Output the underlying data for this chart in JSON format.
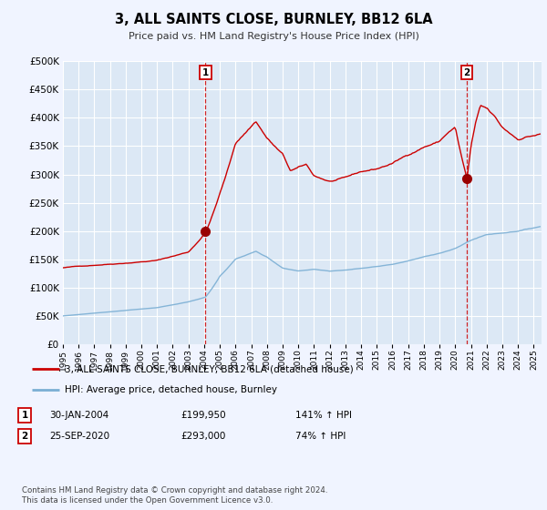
{
  "title": "3, ALL SAINTS CLOSE, BURNLEY, BB12 6LA",
  "subtitle": "Price paid vs. HM Land Registry's House Price Index (HPI)",
  "legend_line1": "3, ALL SAINTS CLOSE, BURNLEY, BB12 6LA (detached house)",
  "legend_line2": "HPI: Average price, detached house, Burnley",
  "table_rows": [
    {
      "num": "1",
      "date": "30-JAN-2004",
      "price": "£199,950",
      "hpi": "141% ↑ HPI"
    },
    {
      "num": "2",
      "date": "25-SEP-2020",
      "price": "£293,000",
      "hpi": "74% ↑ HPI"
    }
  ],
  "footnote": "Contains HM Land Registry data © Crown copyright and database right 2024.\nThis data is licensed under the Open Government Licence v3.0.",
  "marker1_date": 2004.08,
  "marker1_price": 199950,
  "marker2_date": 2020.75,
  "marker2_price": 293000,
  "hpi_color": "#7bafd4",
  "price_color": "#cc0000",
  "bg_color": "#f0f4ff",
  "plot_bg": "#dce8f5",
  "ylim": [
    0,
    500000
  ],
  "xlim": [
    1995.0,
    2025.5
  ],
  "yticks": [
    0,
    50000,
    100000,
    150000,
    200000,
    250000,
    300000,
    350000,
    400000,
    450000,
    500000
  ],
  "ytick_labels": [
    "£0",
    "£50K",
    "£100K",
    "£150K",
    "£200K",
    "£250K",
    "£300K",
    "£350K",
    "£400K",
    "£450K",
    "£500K"
  ],
  "xticks": [
    1995,
    1996,
    1997,
    1998,
    1999,
    2000,
    2001,
    2002,
    2003,
    2004,
    2005,
    2006,
    2007,
    2008,
    2009,
    2010,
    2011,
    2012,
    2013,
    2014,
    2015,
    2016,
    2017,
    2018,
    2019,
    2020,
    2021,
    2022,
    2023,
    2024,
    2025
  ]
}
